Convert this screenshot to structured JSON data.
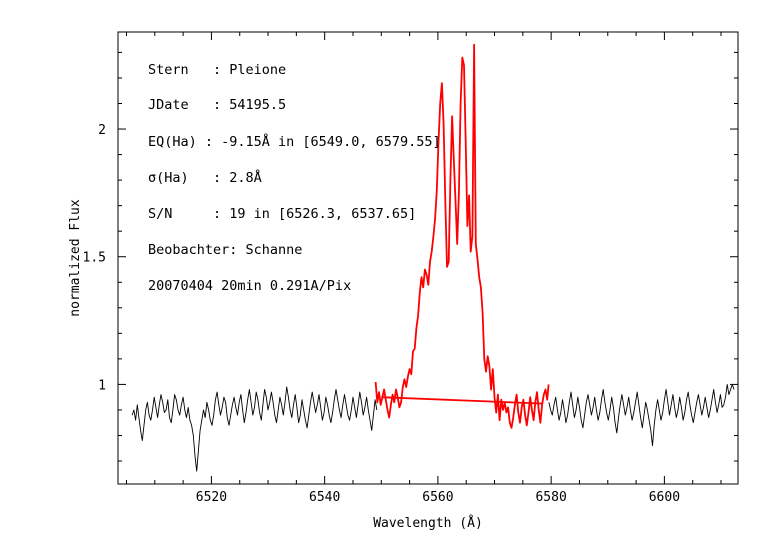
{
  "chart_data": {
    "type": "line",
    "xlabel": "Wavelength (Å)",
    "ylabel": "normalized Flux",
    "xlim": [
      6503.5,
      6613.0
    ],
    "ylim": [
      0.61,
      2.38
    ],
    "x_ticks": [
      6520,
      6540,
      6560,
      6580,
      6600
    ],
    "y_ticks": [
      1,
      1.5,
      2
    ],
    "x_tick_labels": [
      "6520",
      "6540",
      "6560",
      "6580",
      "6600"
    ],
    "y_tick_labels": [
      "1",
      "1.5",
      "2"
    ],
    "grid": false,
    "annotations": [
      "Stern   : Pleione",
      "JDate   : 54195.5",
      "EQ(Ha) : -9.15Å in [6549.0, 6579.55]",
      "σ(Ha)   : 2.8Å",
      "S/N     : 19 in [6526.3, 6537.65]",
      "Beobachter: Schanne",
      "20070404 20min 0.291A/Pix"
    ],
    "series": [
      {
        "color": "#000000",
        "x_start": 6506.0,
        "x_step": 0.3,
        "values": [
          0.88,
          0.9,
          0.86,
          0.92,
          0.87,
          0.82,
          0.78,
          0.84,
          0.9,
          0.93,
          0.88,
          0.86,
          0.9,
          0.95,
          0.91,
          0.87,
          0.92,
          0.96,
          0.93,
          0.89,
          0.9,
          0.94,
          0.87,
          0.85,
          0.9,
          0.96,
          0.94,
          0.9,
          0.88,
          0.92,
          0.95,
          0.9,
          0.87,
          0.91,
          0.86,
          0.84,
          0.8,
          0.72,
          0.66,
          0.74,
          0.82,
          0.86,
          0.9,
          0.87,
          0.93,
          0.9,
          0.86,
          0.84,
          0.88,
          0.94,
          0.97,
          0.92,
          0.88,
          0.91,
          0.95,
          0.93,
          0.87,
          0.84,
          0.88,
          0.92,
          0.95,
          0.91,
          0.88,
          0.93,
          0.96,
          0.9,
          0.85,
          0.89,
          0.94,
          0.98,
          0.93,
          0.88,
          0.91,
          0.97,
          0.94,
          0.89,
          0.86,
          0.92,
          0.98,
          0.95,
          0.9,
          0.93,
          0.97,
          0.93,
          0.88,
          0.85,
          0.9,
          0.95,
          0.92,
          0.88,
          0.93,
          0.99,
          0.95,
          0.9,
          0.87,
          0.92,
          0.96,
          0.91,
          0.85,
          0.88,
          0.94,
          0.9,
          0.86,
          0.83,
          0.88,
          0.93,
          0.97,
          0.93,
          0.89,
          0.92,
          0.96,
          0.91,
          0.86,
          0.89,
          0.95,
          0.92,
          0.88,
          0.85,
          0.89,
          0.94,
          0.98,
          0.94,
          0.9,
          0.87,
          0.92,
          0.96,
          0.92,
          0.88,
          0.86,
          0.9,
          0.95,
          0.91,
          0.87,
          0.92,
          0.97,
          0.93,
          0.88,
          0.91,
          0.95,
          0.9,
          0.86,
          0.82,
          0.88,
          0.94,
          0.9
        ]
      },
      {
        "color": "#000000",
        "x_start": 6579.6,
        "x_step": 0.3,
        "values": [
          0.93,
          0.9,
          0.88,
          0.92,
          0.95,
          0.9,
          0.86,
          0.89,
          0.94,
          0.9,
          0.85,
          0.88,
          0.93,
          0.97,
          0.92,
          0.87,
          0.9,
          0.95,
          0.91,
          0.86,
          0.83,
          0.88,
          0.93,
          0.96,
          0.92,
          0.88,
          0.91,
          0.95,
          0.9,
          0.86,
          0.89,
          0.94,
          0.98,
          0.93,
          0.89,
          0.86,
          0.9,
          0.95,
          0.91,
          0.85,
          0.81,
          0.87,
          0.92,
          0.96,
          0.92,
          0.88,
          0.91,
          0.95,
          0.9,
          0.86,
          0.89,
          0.93,
          0.97,
          0.92,
          0.87,
          0.83,
          0.88,
          0.93,
          0.9,
          0.86,
          0.82,
          0.76,
          0.84,
          0.9,
          0.94,
          0.9,
          0.86,
          0.89,
          0.94,
          0.98,
          0.93,
          0.88,
          0.92,
          0.96,
          0.91,
          0.87,
          0.9,
          0.95,
          0.91,
          0.86,
          0.89,
          0.94,
          0.97,
          0.92,
          0.88,
          0.85,
          0.89,
          0.93,
          0.96,
          0.92,
          0.88,
          0.91,
          0.95,
          0.91,
          0.87,
          0.9,
          0.94,
          0.98,
          0.93,
          0.89,
          0.92,
          0.96,
          0.91,
          0.92,
          0.95,
          1.0,
          0.96,
          0.98,
          1.0,
          0.98
        ]
      },
      {
        "color": "#ff0000",
        "x": [
          6549.0,
          6549.3,
          6549.6,
          6549.9,
          6550.2,
          6550.5,
          6550.8,
          6551.1,
          6551.4,
          6551.7,
          6552.0,
          6552.3,
          6552.6,
          6552.9,
          6553.2,
          6553.5,
          6553.8,
          6554.1,
          6554.4,
          6554.7,
          6555.0,
          6555.3,
          6555.6,
          6555.9,
          6556.2,
          6556.5,
          6556.8,
          6557.1,
          6557.4,
          6557.7,
          6558.0,
          6558.3,
          6558.6,
          6558.9,
          6559.2,
          6559.5,
          6559.8,
          6560.1,
          6560.4,
          6560.7,
          6561.0,
          6561.3,
          6561.6,
          6561.9,
          6562.2,
          6562.5,
          6562.8,
          6563.1,
          6563.4,
          6563.7,
          6564.0,
          6564.3,
          6564.6,
          6564.9,
          6565.2,
          6565.5,
          6565.8,
          6566.1,
          6566.4,
          6566.7,
          6567.0,
          6567.3,
          6567.6,
          6567.9,
          6568.2,
          6568.5,
          6568.8,
          6569.1,
          6569.4,
          6569.7,
          6570.0,
          6570.3,
          6570.6,
          6570.9,
          6571.2,
          6571.5,
          6571.8,
          6572.1,
          6572.4,
          6572.7,
          6573.0,
          6573.3,
          6573.6,
          6573.9,
          6574.2,
          6574.5,
          6574.8,
          6575.1,
          6575.4,
          6575.7,
          6576.0,
          6576.3,
          6576.6,
          6576.9,
          6577.2,
          6577.5,
          6577.8,
          6578.1,
          6578.4,
          6578.7,
          6579.0,
          6579.3,
          6579.55
        ],
        "values": [
          1.01,
          0.93,
          0.97,
          0.92,
          0.95,
          0.98,
          0.94,
          0.9,
          0.87,
          0.92,
          0.96,
          0.93,
          0.98,
          0.95,
          0.91,
          0.93,
          0.99,
          1.02,
          0.99,
          1.03,
          1.06,
          1.04,
          1.13,
          1.14,
          1.22,
          1.27,
          1.36,
          1.42,
          1.38,
          1.45,
          1.43,
          1.39,
          1.48,
          1.52,
          1.58,
          1.65,
          1.76,
          1.95,
          2.1,
          2.18,
          2.02,
          1.72,
          1.46,
          1.48,
          1.8,
          2.05,
          1.88,
          1.72,
          1.55,
          1.75,
          2.1,
          2.28,
          2.25,
          1.95,
          1.62,
          1.74,
          1.52,
          1.58,
          2.33,
          1.55,
          1.49,
          1.42,
          1.38,
          1.28,
          1.1,
          1.05,
          1.11,
          1.07,
          0.98,
          1.06,
          0.95,
          0.89,
          0.96,
          0.86,
          0.94,
          0.9,
          0.93,
          0.89,
          0.91,
          0.85,
          0.83,
          0.87,
          0.92,
          0.96,
          0.89,
          0.85,
          0.91,
          0.94,
          0.88,
          0.84,
          0.89,
          0.95,
          0.9,
          0.86,
          0.93,
          0.97,
          0.9,
          0.85,
          0.92,
          0.96,
          0.98,
          0.94,
          1.0
        ]
      },
      {
        "color": "#ff0000",
        "x": [
          6550.0,
          6578.5
        ],
        "values": [
          0.95,
          0.925
        ]
      }
    ]
  }
}
